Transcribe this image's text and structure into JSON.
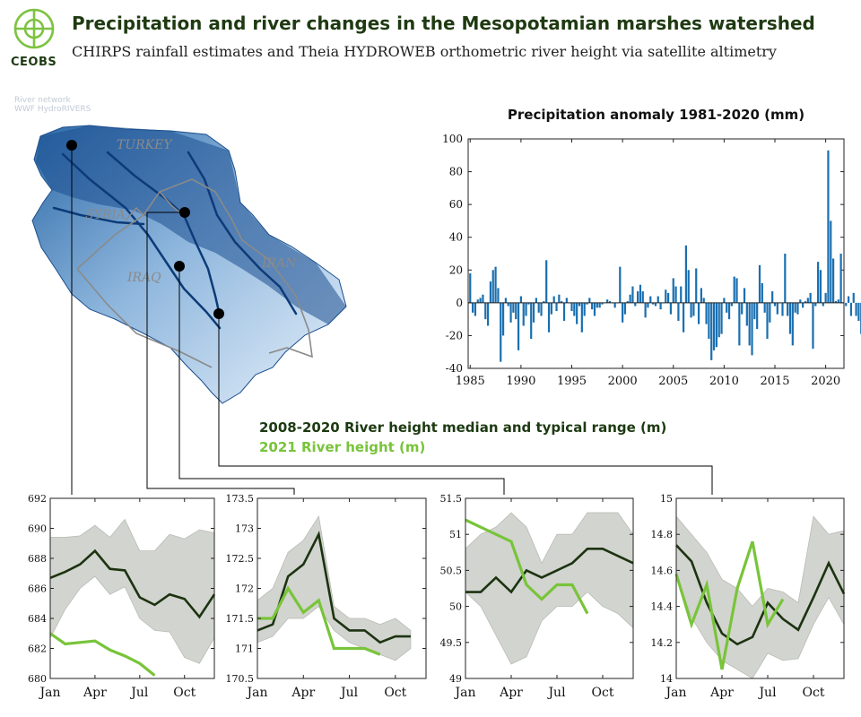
{
  "header": {
    "title": "Precipitation and river changes in the Mesopotamian marshes watershed",
    "subtitle": "CHIRPS rainfall estimates and Theia HYDROWEB orthometric river height via satellite altimetry",
    "logo": "CEOBS"
  },
  "map": {
    "river_network_line1": "River network",
    "river_network_line2": "WWF HydroRIVERS",
    "countries": [
      "TURKEY",
      "SYRIA",
      "IRAQ",
      "IRAN"
    ]
  },
  "legend": {
    "median_label": "2008-2020 River height median and typical range (m)",
    "current_label": "2021 River height (m)"
  },
  "colors": {
    "bar": "#1a6fb0",
    "median_line": "#1c3310",
    "current_line": "#78c43a",
    "range_fill": "#d2d4cf",
    "title": "#1f3a12"
  },
  "chart_data": [
    {
      "type": "bar",
      "title": "Precipitation anomaly 1981-2020 (mm)",
      "xlabel": "",
      "ylabel": "",
      "xlim": [
        1984.8,
        2021.8
      ],
      "ylim": [
        -40,
        100
      ],
      "x_ticks": [
        1985,
        1990,
        1995,
        2000,
        2005,
        2010,
        2015,
        2020
      ],
      "y_ticks": [
        -40,
        -20,
        0,
        20,
        40,
        60,
        80,
        100
      ],
      "values": [
        18,
        -6,
        -8,
        2,
        3,
        5,
        -10,
        -14,
        13,
        20,
        22,
        9,
        -36,
        -20,
        3,
        -2,
        -12,
        -6,
        -10,
        -29,
        4,
        -14,
        -8,
        -1,
        -22,
        -12,
        3,
        -6,
        -8,
        1,
        26,
        -18,
        -7,
        4,
        -5,
        5,
        1,
        -11,
        3,
        0,
        -5,
        -8,
        -13,
        -2,
        -18,
        -8,
        -1,
        3,
        -4,
        -8,
        -3,
        -3,
        -1,
        0,
        2,
        1,
        0,
        -3,
        0,
        22,
        -12,
        -7,
        1,
        5,
        10,
        -2,
        7,
        11,
        7,
        -9,
        -3,
        4,
        -1,
        -2,
        4,
        -4,
        0,
        8,
        6,
        -7,
        15,
        10,
        -11,
        10,
        -18,
        35,
        20,
        -9,
        -8,
        21,
        -13,
        9,
        3,
        -13,
        -22,
        -35,
        -29,
        -27,
        -21,
        -19,
        3,
        -6,
        -10,
        -2,
        16,
        15,
        -26,
        -7,
        9,
        -14,
        -26,
        -32,
        -10,
        -16,
        23,
        12,
        -6,
        -22,
        -12,
        7,
        -2,
        -7,
        0,
        -8,
        30,
        -8,
        -19,
        -26,
        -6,
        -7,
        2,
        -3,
        1,
        3,
        6,
        -28,
        -2,
        25,
        20,
        -2,
        6,
        93,
        50,
        27,
        1,
        2,
        30,
        0,
        -2,
        4,
        -8,
        6,
        -8,
        -11,
        -19
      ],
      "x_start": 1985.0,
      "x_step": 0.25
    },
    {
      "type": "line",
      "x_ticks": [
        "Jan",
        "Apr",
        "Jul",
        "Oct"
      ],
      "x": [
        1,
        2,
        3,
        4,
        5,
        6,
        7,
        8,
        9,
        10,
        11,
        12
      ],
      "ylim": [
        680,
        692
      ],
      "y_ticks": [
        680,
        682,
        684,
        686,
        688,
        690,
        692
      ],
      "series": [
        {
          "name": "2008-2020 median",
          "values": [
            686.7,
            687.1,
            687.6,
            688.5,
            687.3,
            687.2,
            685.4,
            684.9,
            685.6,
            685.3,
            684.1,
            685.6
          ]
        },
        {
          "name": "range low",
          "values": [
            682.7,
            684.6,
            686.0,
            686.8,
            685.6,
            686.1,
            684.0,
            683.2,
            683.1,
            681.4,
            681.0,
            682.7
          ]
        },
        {
          "name": "range high",
          "values": [
            689.4,
            689.4,
            689.5,
            690.2,
            689.4,
            690.6,
            688.5,
            688.5,
            689.6,
            689.3,
            689.9,
            689.7
          ]
        },
        {
          "name": "2021",
          "values": [
            683.0,
            682.3,
            682.4,
            682.5,
            681.9,
            681.5,
            681.0,
            680.2,
            null,
            null,
            null,
            null
          ]
        }
      ]
    },
    {
      "type": "line",
      "x_ticks": [
        "Jan",
        "Apr",
        "Jul",
        "Oct"
      ],
      "x": [
        1,
        2,
        3,
        4,
        5,
        6,
        7,
        8,
        9,
        10,
        11,
        12
      ],
      "ylim": [
        170.5,
        173.5
      ],
      "y_ticks": [
        170.5,
        171,
        171.5,
        172,
        172.5,
        173,
        173.5
      ],
      "series": [
        {
          "name": "2008-2020 median",
          "values": [
            171.3,
            171.4,
            172.2,
            172.4,
            172.9,
            171.5,
            171.3,
            171.3,
            171.1,
            171.2,
            171.2,
            null
          ]
        },
        {
          "name": "range low",
          "values": [
            171.1,
            171.2,
            171.5,
            171.5,
            171.7,
            171.3,
            171.1,
            171.0,
            170.9,
            170.8,
            171.0,
            null
          ]
        },
        {
          "name": "range high",
          "values": [
            171.8,
            172.0,
            172.6,
            172.8,
            173.2,
            171.7,
            171.5,
            171.5,
            171.4,
            171.5,
            171.3,
            null
          ]
        },
        {
          "name": "2021",
          "values": [
            171.5,
            171.5,
            172.0,
            171.6,
            171.8,
            171.0,
            171.0,
            171.0,
            170.9,
            null,
            null,
            null
          ]
        }
      ]
    },
    {
      "type": "line",
      "x_ticks": [
        "Jan",
        "Apr",
        "Jul",
        "Oct"
      ],
      "x": [
        1,
        2,
        3,
        4,
        5,
        6,
        7,
        8,
        9,
        10,
        11,
        12
      ],
      "ylim": [
        49,
        51.5
      ],
      "y_ticks": [
        49,
        49.5,
        50,
        50.5,
        51,
        51.5
      ],
      "series": [
        {
          "name": "2008-2020 median",
          "values": [
            50.2,
            50.2,
            50.4,
            50.2,
            50.5,
            50.4,
            50.5,
            50.6,
            50.8,
            50.8,
            50.7,
            50.6
          ]
        },
        {
          "name": "range low",
          "values": [
            50.2,
            50.0,
            49.6,
            49.2,
            49.3,
            49.8,
            50.0,
            50.0,
            50.2,
            50.0,
            49.9,
            49.7
          ]
        },
        {
          "name": "range high",
          "values": [
            50.8,
            51.0,
            51.1,
            51.3,
            51.1,
            50.6,
            51.0,
            51.0,
            51.3,
            51.3,
            51.3,
            51.0
          ]
        },
        {
          "name": "2021",
          "values": [
            51.2,
            51.1,
            51.0,
            50.9,
            50.3,
            50.1,
            50.3,
            50.3,
            49.9,
            null,
            null,
            null
          ]
        }
      ]
    },
    {
      "type": "line",
      "x_ticks": [
        "Jan",
        "Apr",
        "Jul",
        "Oct"
      ],
      "x": [
        1,
        2,
        3,
        4,
        5,
        6,
        7,
        8,
        9,
        10,
        11,
        12
      ],
      "ylim": [
        14,
        15
      ],
      "y_ticks": [
        14,
        14.2,
        14.4,
        14.6,
        14.8,
        15
      ],
      "series": [
        {
          "name": "2008-2020 median",
          "values": [
            14.74,
            14.65,
            14.42,
            14.25,
            14.19,
            14.23,
            14.42,
            14.33,
            14.27,
            14.45,
            14.64,
            14.47
          ]
        },
        {
          "name": "range low",
          "values": [
            14.58,
            14.34,
            14.2,
            14.1,
            14.05,
            14.0,
            14.14,
            14.1,
            14.11,
            14.3,
            14.45,
            14.3
          ]
        },
        {
          "name": "range high",
          "values": [
            14.9,
            14.8,
            14.7,
            14.55,
            14.5,
            14.4,
            14.5,
            14.48,
            14.42,
            14.9,
            14.8,
            14.82
          ]
        },
        {
          "name": "2021",
          "values": [
            14.58,
            14.3,
            14.52,
            14.05,
            14.5,
            14.76,
            14.3,
            14.44,
            null,
            null,
            null,
            null
          ]
        }
      ]
    }
  ]
}
